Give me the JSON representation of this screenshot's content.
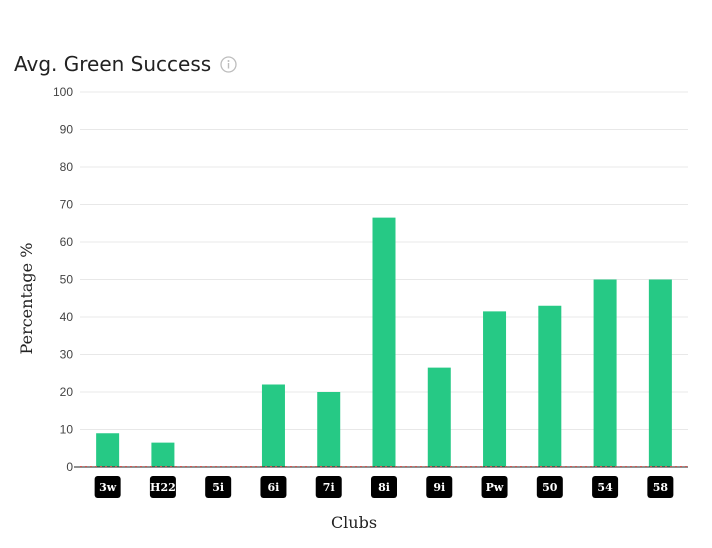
{
  "colors": {
    "bar": "#26c985",
    "grid": "#e8e8e8",
    "axis": "#222222",
    "baseline_marker": "#d9534f",
    "label_bg": "#000000"
  },
  "icons": {
    "info": "info-circle-icon"
  },
  "chart_data": {
    "type": "bar",
    "title": "Avg. Green Success",
    "xlabel": "Clubs",
    "ylabel": "Percentage %",
    "ylim": [
      0,
      100
    ],
    "yticks": [
      0,
      10,
      20,
      30,
      40,
      50,
      60,
      70,
      80,
      90,
      100
    ],
    "categories": [
      "3w",
      "H22",
      "5i",
      "6i",
      "7i",
      "8i",
      "9i",
      "Pw",
      "50",
      "54",
      "58"
    ],
    "values": [
      9,
      6.5,
      0,
      22,
      20,
      66.5,
      26.5,
      41.5,
      43,
      50,
      50
    ],
    "grid": true,
    "legend": "none"
  }
}
